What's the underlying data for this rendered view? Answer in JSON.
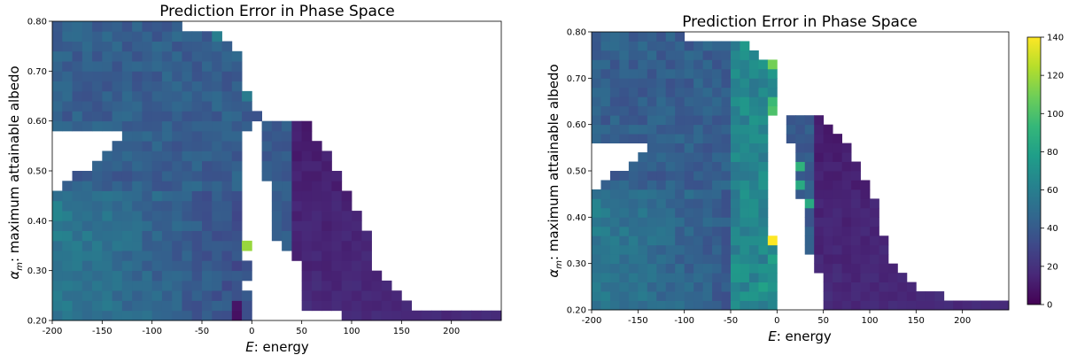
{
  "colors": {
    "viridis_stops": [
      "#440154",
      "#482878",
      "#3e4989",
      "#31688e",
      "#26828e",
      "#1f9e89",
      "#35b779",
      "#6ece58",
      "#b5de2b",
      "#fde725"
    ],
    "background": "#ffffff"
  },
  "chart_data": [
    {
      "type": "heatmap",
      "title": "Prediction Error in Phase Space",
      "xlabel_italic": "E",
      "xlabel_rest": ": energy",
      "ylabel_sym": "α",
      "ylabel_sub": "m",
      "ylabel_rest": ": maximum attainable albedo",
      "xlim": [
        -200,
        250
      ],
      "ylim": [
        0.2,
        0.8
      ],
      "xticks": [
        -200,
        -150,
        -100,
        -50,
        0,
        50,
        100,
        150,
        200
      ],
      "xtick_labels": [
        "-200",
        "-150",
        "-100",
        "-50",
        "0",
        "50",
        "100",
        "150",
        "200"
      ],
      "yticks": [
        0.2,
        0.3,
        0.4,
        0.5,
        0.6,
        0.7,
        0.8
      ],
      "ytick_labels": [
        "0.20",
        "0.30",
        "0.40",
        "0.50",
        "0.60",
        "0.70",
        "0.80"
      ],
      "cell_dx": 10,
      "cell_dy": 0.02,
      "rows": [
        {
          "y": 0.2,
          "x0": -200,
          "x1": 0
        },
        {
          "y": 0.2,
          "x0": 90,
          "x1": 250
        },
        {
          "y": 0.22,
          "x0": -200,
          "x1": 0
        },
        {
          "y": 0.22,
          "x0": 50,
          "x1": 160
        },
        {
          "y": 0.24,
          "x0": -200,
          "x1": 0
        },
        {
          "y": 0.24,
          "x0": 50,
          "x1": 150
        },
        {
          "y": 0.26,
          "x0": -200,
          "x1": -10
        },
        {
          "y": 0.26,
          "x0": 50,
          "x1": 140
        },
        {
          "y": 0.28,
          "x0": -200,
          "x1": 0
        },
        {
          "y": 0.28,
          "x0": 50,
          "x1": 130
        },
        {
          "y": 0.3,
          "x0": -200,
          "x1": 0
        },
        {
          "y": 0.3,
          "x0": 50,
          "x1": 120
        },
        {
          "y": 0.32,
          "x0": -200,
          "x1": -10
        },
        {
          "y": 0.32,
          "x0": 40,
          "x1": 120
        },
        {
          "y": 0.34,
          "x0": -200,
          "x1": 0
        },
        {
          "y": 0.34,
          "x0": 30,
          "x1": 120
        },
        {
          "y": 0.36,
          "x0": -200,
          "x1": -10
        },
        {
          "y": 0.36,
          "x0": 20,
          "x1": 120
        },
        {
          "y": 0.38,
          "x0": -200,
          "x1": -10
        },
        {
          "y": 0.38,
          "x0": 20,
          "x1": 110
        },
        {
          "y": 0.4,
          "x0": -200,
          "x1": -10
        },
        {
          "y": 0.4,
          "x0": 20,
          "x1": 110
        },
        {
          "y": 0.42,
          "x0": -200,
          "x1": -10
        },
        {
          "y": 0.42,
          "x0": 20,
          "x1": 100
        },
        {
          "y": 0.44,
          "x0": -200,
          "x1": -10
        },
        {
          "y": 0.44,
          "x0": 20,
          "x1": 100
        },
        {
          "y": 0.46,
          "x0": -190,
          "x1": -10
        },
        {
          "y": 0.46,
          "x0": 20,
          "x1": 90
        },
        {
          "y": 0.48,
          "x0": -180,
          "x1": -10
        },
        {
          "y": 0.48,
          "x0": 10,
          "x1": 90
        },
        {
          "y": 0.5,
          "x0": -160,
          "x1": -10
        },
        {
          "y": 0.5,
          "x0": 10,
          "x1": 80
        },
        {
          "y": 0.52,
          "x0": -150,
          "x1": -10
        },
        {
          "y": 0.52,
          "x0": 10,
          "x1": 80
        },
        {
          "y": 0.54,
          "x0": -140,
          "x1": -10
        },
        {
          "y": 0.54,
          "x0": 10,
          "x1": 70
        },
        {
          "y": 0.56,
          "x0": -130,
          "x1": -10
        },
        {
          "y": 0.56,
          "x0": 10,
          "x1": 60
        },
        {
          "y": 0.58,
          "x0": -200,
          "x1": 0
        },
        {
          "y": 0.58,
          "x0": 10,
          "x1": 60
        },
        {
          "y": 0.6,
          "x0": -200,
          "x1": 10
        },
        {
          "y": 0.62,
          "x0": -200,
          "x1": 0
        },
        {
          "y": 0.64,
          "x0": -200,
          "x1": 0
        },
        {
          "y": 0.66,
          "x0": -200,
          "x1": -10
        },
        {
          "y": 0.68,
          "x0": -200,
          "x1": -10
        },
        {
          "y": 0.7,
          "x0": -200,
          "x1": -10
        },
        {
          "y": 0.72,
          "x0": -200,
          "x1": -10
        },
        {
          "y": 0.74,
          "x0": -200,
          "x1": -20
        },
        {
          "y": 0.76,
          "x0": -200,
          "x1": -30
        },
        {
          "y": 0.78,
          "x0": -200,
          "x1": -70
        }
      ],
      "highlights": [
        {
          "x": -10,
          "y": 0.34,
          "value": 118
        },
        {
          "x": -20,
          "y": 0.22,
          "value": 8
        },
        {
          "x": -20,
          "y": 0.2,
          "value": 6
        },
        {
          "x": -10,
          "y": 0.64,
          "value": 58
        },
        {
          "x": -10,
          "y": 0.72,
          "value": 62
        },
        {
          "x": -40,
          "y": 0.76,
          "value": 60
        }
      ]
    },
    {
      "type": "heatmap",
      "title": "Prediction Error in Phase Space",
      "xlabel_italic": "E",
      "xlabel_rest": ": energy",
      "ylabel_sym": "α",
      "ylabel_sub": "m",
      "ylabel_rest": ": maximum attainable albedo",
      "xlim": [
        -200,
        250
      ],
      "ylim": [
        0.2,
        0.8
      ],
      "xticks": [
        -200,
        -150,
        -100,
        -50,
        0,
        50,
        100,
        150,
        200
      ],
      "xtick_labels": [
        "-200",
        "-150",
        "-100",
        "-50",
        "0",
        "50",
        "100",
        "150",
        "200"
      ],
      "yticks": [
        0.2,
        0.3,
        0.4,
        0.5,
        0.6,
        0.7,
        0.8
      ],
      "ytick_labels": [
        "0.20",
        "0.30",
        "0.40",
        "0.50",
        "0.60",
        "0.70",
        "0.80"
      ],
      "cell_dx": 10,
      "cell_dy": 0.02,
      "rows": [
        {
          "y": 0.2,
          "x0": -200,
          "x1": 0
        },
        {
          "y": 0.2,
          "x0": 50,
          "x1": 250
        },
        {
          "y": 0.22,
          "x0": -200,
          "x1": 0
        },
        {
          "y": 0.22,
          "x0": 50,
          "x1": 180
        },
        {
          "y": 0.24,
          "x0": -200,
          "x1": 0
        },
        {
          "y": 0.24,
          "x0": 50,
          "x1": 150
        },
        {
          "y": 0.26,
          "x0": -200,
          "x1": 0
        },
        {
          "y": 0.26,
          "x0": 50,
          "x1": 140
        },
        {
          "y": 0.28,
          "x0": -200,
          "x1": 0
        },
        {
          "y": 0.28,
          "x0": 40,
          "x1": 130
        },
        {
          "y": 0.3,
          "x0": -200,
          "x1": 0
        },
        {
          "y": 0.3,
          "x0": 40,
          "x1": 120
        },
        {
          "y": 0.32,
          "x0": -200,
          "x1": 0
        },
        {
          "y": 0.32,
          "x0": 30,
          "x1": 120
        },
        {
          "y": 0.34,
          "x0": -200,
          "x1": 0
        },
        {
          "y": 0.34,
          "x0": 30,
          "x1": 120
        },
        {
          "y": 0.36,
          "x0": -200,
          "x1": -10
        },
        {
          "y": 0.36,
          "x0": 30,
          "x1": 110
        },
        {
          "y": 0.38,
          "x0": -200,
          "x1": -10
        },
        {
          "y": 0.38,
          "x0": 30,
          "x1": 110
        },
        {
          "y": 0.4,
          "x0": -200,
          "x1": -10
        },
        {
          "y": 0.4,
          "x0": 30,
          "x1": 110
        },
        {
          "y": 0.42,
          "x0": -200,
          "x1": -10
        },
        {
          "y": 0.42,
          "x0": 30,
          "x1": 110
        },
        {
          "y": 0.44,
          "x0": -200,
          "x1": -10
        },
        {
          "y": 0.44,
          "x0": 20,
          "x1": 100
        },
        {
          "y": 0.46,
          "x0": -190,
          "x1": -10
        },
        {
          "y": 0.46,
          "x0": 20,
          "x1": 100
        },
        {
          "y": 0.48,
          "x0": -180,
          "x1": -10
        },
        {
          "y": 0.48,
          "x0": 20,
          "x1": 90
        },
        {
          "y": 0.5,
          "x0": -160,
          "x1": -10
        },
        {
          "y": 0.5,
          "x0": 20,
          "x1": 90
        },
        {
          "y": 0.52,
          "x0": -150,
          "x1": -10
        },
        {
          "y": 0.52,
          "x0": 20,
          "x1": 80
        },
        {
          "y": 0.54,
          "x0": -140,
          "x1": -10
        },
        {
          "y": 0.54,
          "x0": 20,
          "x1": 80
        },
        {
          "y": 0.56,
          "x0": -200,
          "x1": -10
        },
        {
          "y": 0.56,
          "x0": 10,
          "x1": 70
        },
        {
          "y": 0.58,
          "x0": -200,
          "x1": -10
        },
        {
          "y": 0.58,
          "x0": 10,
          "x1": 60
        },
        {
          "y": 0.6,
          "x0": -200,
          "x1": -10
        },
        {
          "y": 0.6,
          "x0": 10,
          "x1": 50
        },
        {
          "y": 0.62,
          "x0": -200,
          "x1": 0
        },
        {
          "y": 0.64,
          "x0": -200,
          "x1": 0
        },
        {
          "y": 0.66,
          "x0": -200,
          "x1": 0
        },
        {
          "y": 0.68,
          "x0": -200,
          "x1": 0
        },
        {
          "y": 0.7,
          "x0": -200,
          "x1": 0
        },
        {
          "y": 0.72,
          "x0": -200,
          "x1": 0
        },
        {
          "y": 0.74,
          "x0": -200,
          "x1": -20
        },
        {
          "y": 0.76,
          "x0": -200,
          "x1": -30
        },
        {
          "y": 0.78,
          "x0": -200,
          "x1": -100
        }
      ],
      "highlights": [
        {
          "x": -10,
          "y": 0.34,
          "value": 140
        },
        {
          "x": -10,
          "y": 0.26,
          "value": 70
        },
        {
          "x": -10,
          "y": 0.3,
          "value": 80
        },
        {
          "x": -10,
          "y": 0.5,
          "value": 90
        },
        {
          "x": -10,
          "y": 0.62,
          "value": 100
        },
        {
          "x": -10,
          "y": 0.64,
          "value": 95
        },
        {
          "x": -10,
          "y": 0.72,
          "value": 110
        },
        {
          "x": -20,
          "y": 0.74,
          "value": 105
        },
        {
          "x": -10,
          "y": 0.74,
          "value": 80
        },
        {
          "x": -40,
          "y": 0.76,
          "value": 75
        },
        {
          "x": -20,
          "y": 0.24,
          "value": 80
        },
        {
          "x": 20,
          "y": 0.5,
          "value": 90
        },
        {
          "x": 20,
          "y": 0.46,
          "value": 85
        },
        {
          "x": 30,
          "y": 0.42,
          "value": 85
        }
      ],
      "colorbar": {
        "min": 0,
        "max": 140,
        "ticks": [
          0,
          20,
          40,
          60,
          80,
          100,
          120,
          140
        ],
        "tick_labels": [
          "0",
          "20",
          "40",
          "60",
          "80",
          "100",
          "120",
          "140"
        ]
      }
    }
  ]
}
